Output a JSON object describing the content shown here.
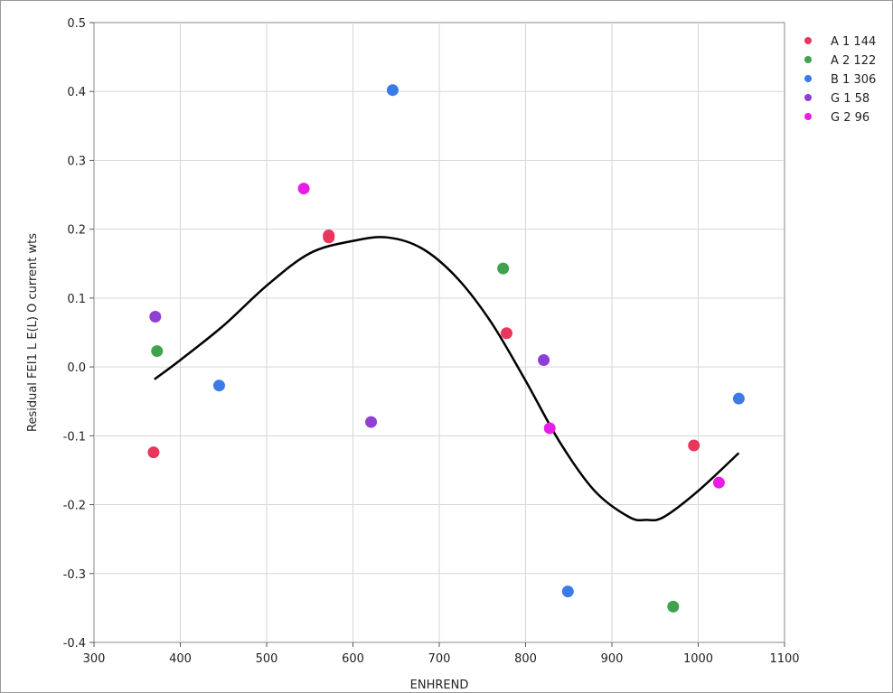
{
  "chart_data": {
    "type": "scatter",
    "title": "",
    "xlabel": "ENHREND",
    "ylabel": "Residual FEI1 L E(L) O current wts",
    "xlim": [
      300,
      1100
    ],
    "ylim": [
      -0.4,
      0.5
    ],
    "xticks": [
      300,
      400,
      500,
      600,
      700,
      800,
      900,
      1000,
      1100
    ],
    "yticks": [
      -0.4,
      -0.3,
      -0.2,
      -0.1,
      0.0,
      0.1,
      0.2,
      0.3,
      0.4,
      0.5
    ],
    "ytick_labels": [
      "-0.4",
      "-0.3",
      "-0.2",
      "-0.1",
      "0.0",
      "0.1",
      "0.2",
      "0.3",
      "0.4",
      "0.5"
    ],
    "grid": true,
    "legend_position": "right",
    "series": [
      {
        "name": "A 1 144",
        "color": "#e8365d",
        "points": [
          [
            369,
            -0.124
          ],
          [
            572,
            0.188
          ],
          [
            572,
            0.191
          ],
          [
            778,
            0.049
          ],
          [
            995,
            -0.114
          ]
        ]
      },
      {
        "name": "A 2 122",
        "color": "#3fa34d",
        "points": [
          [
            373,
            0.023
          ],
          [
            774,
            0.143
          ],
          [
            971,
            -0.348
          ]
        ]
      },
      {
        "name": "B 1 306",
        "color": "#3a7be8",
        "points": [
          [
            445,
            -0.027
          ],
          [
            646,
            0.402
          ],
          [
            849,
            -0.326
          ],
          [
            1047,
            -0.046
          ]
        ]
      },
      {
        "name": "G 1 58",
        "color": "#8e3fd6",
        "points": [
          [
            371,
            0.073
          ],
          [
            621,
            -0.08
          ],
          [
            821,
            0.01
          ]
        ]
      },
      {
        "name": "G 2 96",
        "color": "#e81ee6",
        "points": [
          [
            543,
            0.259
          ],
          [
            828,
            -0.089
          ],
          [
            1024,
            -0.168
          ]
        ]
      }
    ],
    "fit_curve": {
      "color": "#000000",
      "points": [
        [
          370,
          -0.018
        ],
        [
          400,
          0.01
        ],
        [
          450,
          0.06
        ],
        [
          500,
          0.118
        ],
        [
          550,
          0.165
        ],
        [
          600,
          0.183
        ],
        [
          640,
          0.188
        ],
        [
          680,
          0.172
        ],
        [
          720,
          0.13
        ],
        [
          760,
          0.065
        ],
        [
          800,
          -0.02
        ],
        [
          840,
          -0.11
        ],
        [
          880,
          -0.18
        ],
        [
          920,
          -0.218
        ],
        [
          940,
          -0.222
        ],
        [
          960,
          -0.218
        ],
        [
          1000,
          -0.18
        ],
        [
          1047,
          -0.125
        ]
      ]
    }
  }
}
